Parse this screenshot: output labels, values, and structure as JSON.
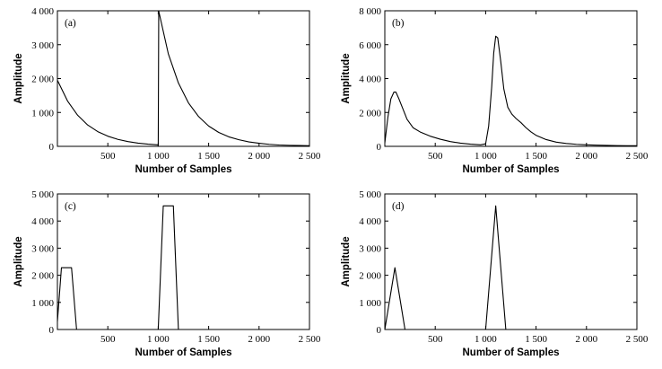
{
  "chart_data": [
    {
      "type": "line",
      "panel_label": "(a)",
      "xlabel": "Number of Samples",
      "ylabel": "Amplitude",
      "xlim": [
        0,
        2500
      ],
      "ylim": [
        0,
        4000
      ],
      "xticks": [
        500,
        1000,
        1500,
        2000,
        2500
      ],
      "xtick_labels": [
        "500",
        "1 000",
        "1 500",
        "2 000",
        "2 500"
      ],
      "yticks": [
        0,
        1000,
        2000,
        3000,
        4000
      ],
      "ytick_labels": [
        "0",
        "1 000",
        "2 000",
        "3 000",
        "4 000"
      ],
      "grid": false,
      "series": [
        {
          "x": [
            0,
            100,
            200,
            300,
            400,
            500,
            600,
            700,
            800,
            900,
            990,
            1000,
            1005,
            1100,
            1200,
            1300,
            1400,
            1500,
            1600,
            1700,
            1800,
            1900,
            2000,
            2100,
            2200,
            2300,
            2400,
            2500
          ],
          "y": [
            1950,
            1340,
            920,
            630,
            435,
            300,
            205,
            140,
            95,
            65,
            45,
            30,
            3990,
            2730,
            1870,
            1280,
            880,
            600,
            410,
            280,
            195,
            130,
            90,
            60,
            40,
            30,
            25,
            20
          ]
        }
      ]
    },
    {
      "type": "line",
      "panel_label": "(b)",
      "xlabel": "Number of Samples",
      "ylabel": "Amplitude",
      "xlim": [
        0,
        2500
      ],
      "ylim": [
        0,
        8000
      ],
      "xticks": [
        500,
        1000,
        1500,
        2000,
        2500
      ],
      "xtick_labels": [
        "500",
        "1 000",
        "1 500",
        "2 000",
        "2 500"
      ],
      "yticks": [
        0,
        2000,
        4000,
        6000,
        8000
      ],
      "ytick_labels": [
        "0",
        "2 000",
        "4 000",
        "6 000",
        "8 000"
      ],
      "grid": false,
      "series": [
        {
          "x": [
            0,
            30,
            60,
            90,
            110,
            140,
            180,
            220,
            280,
            350,
            450,
            550,
            650,
            750,
            850,
            950,
            1000,
            1030,
            1060,
            1080,
            1100,
            1120,
            1150,
            1180,
            1220,
            1260,
            1300,
            1350,
            1400,
            1450,
            1500,
            1600,
            1700,
            1800,
            1900,
            2000,
            2100,
            2200,
            2300,
            2400,
            2500
          ],
          "y": [
            200,
            1700,
            2800,
            3200,
            3200,
            2800,
            2200,
            1600,
            1100,
            850,
            600,
            420,
            280,
            190,
            130,
            90,
            150,
            1200,
            3500,
            5500,
            6500,
            6400,
            5000,
            3400,
            2300,
            1900,
            1650,
            1400,
            1100,
            850,
            650,
            400,
            250,
            170,
            120,
            90,
            70,
            55,
            45,
            40,
            35
          ]
        }
      ]
    },
    {
      "type": "line",
      "panel_label": "(c)",
      "xlabel": "Number of Samples",
      "ylabel": "Amplitude",
      "xlim": [
        0,
        2500
      ],
      "ylim": [
        0,
        5000
      ],
      "xticks": [
        500,
        1000,
        1500,
        2000,
        2500
      ],
      "xtick_labels": [
        "500",
        "1 000",
        "1 500",
        "2 000",
        "2 500"
      ],
      "yticks": [
        0,
        1000,
        2000,
        3000,
        4000,
        5000
      ],
      "ytick_labels": [
        "0",
        "1 000",
        "2 000",
        "3 000",
        "4 000",
        "5 000"
      ],
      "grid": false,
      "series": [
        {
          "x": [
            0,
            40,
            140,
            190,
            1000,
            1050,
            1150,
            1200,
            2500
          ],
          "y": [
            300,
            2280,
            2280,
            0,
            0,
            4560,
            4560,
            0,
            0
          ]
        }
      ]
    },
    {
      "type": "line",
      "panel_label": "(d)",
      "xlabel": "Number of Samples",
      "ylabel": "Amplitude",
      "xlim": [
        0,
        2500
      ],
      "ylim": [
        0,
        5000
      ],
      "xticks": [
        500,
        1000,
        1500,
        2000,
        2500
      ],
      "xtick_labels": [
        "500",
        "1 000",
        "1 500",
        "2 000",
        "2 500"
      ],
      "yticks": [
        0,
        1000,
        2000,
        3000,
        4000,
        5000
      ],
      "ytick_labels": [
        "0",
        "1 000",
        "2 000",
        "3 000",
        "4 000",
        "5 000"
      ],
      "grid": false,
      "series": [
        {
          "x": [
            0,
            100,
            200,
            1000,
            1100,
            1200,
            2500
          ],
          "y": [
            0,
            2280,
            0,
            0,
            4560,
            0,
            0
          ]
        }
      ]
    }
  ]
}
